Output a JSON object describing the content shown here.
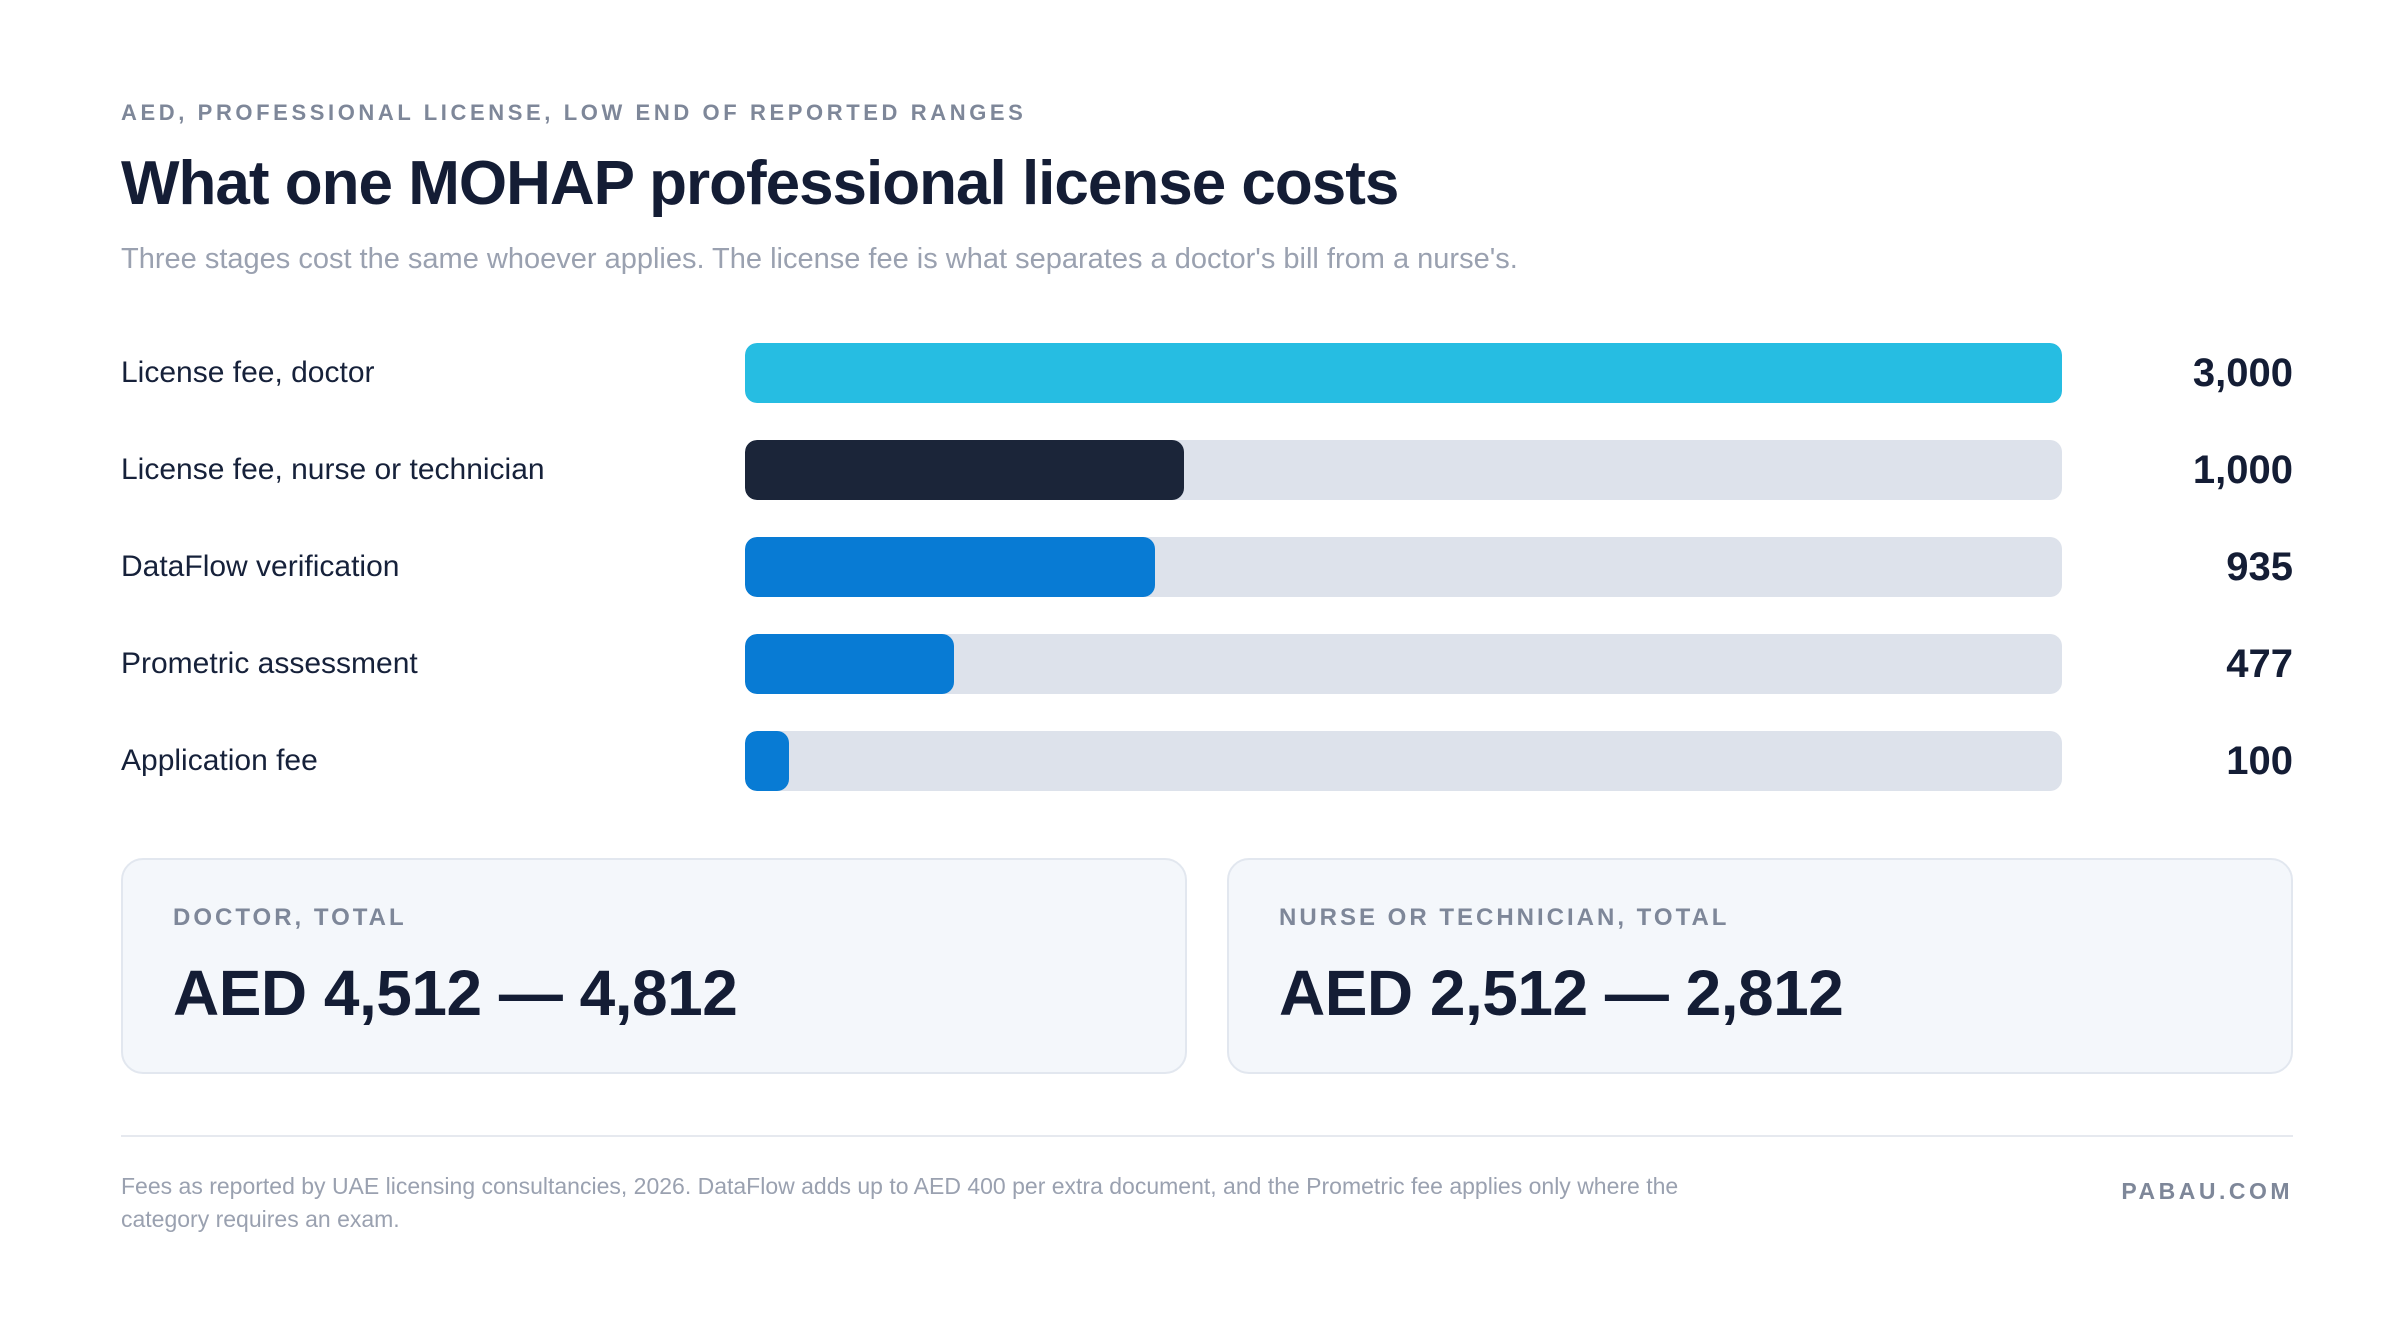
{
  "header": {
    "eyebrow": "AED, PROFESSIONAL LICENSE, LOW END OF REPORTED RANGES",
    "title": "What one MOHAP professional license costs",
    "subtitle": "Three stages cost the same whoever applies. The license fee is what separates a doctor's bill from a nurse's."
  },
  "chart_data": {
    "type": "bar",
    "orientation": "horizontal",
    "categories": [
      "License fee, doctor",
      "License fee, nurse or technician",
      "DataFlow verification",
      "Prometric assessment",
      "Application fee"
    ],
    "values": [
      3000,
      1000,
      935,
      477,
      100
    ],
    "value_labels": [
      "3,000",
      "1,000",
      "935",
      "477",
      "100"
    ],
    "bar_colors": [
      "#26bde2",
      "#1b2539",
      "#087bd4",
      "#087bd4",
      "#087bd4"
    ],
    "track_color": "#dde2eb",
    "xlim": [
      0,
      3000
    ],
    "grid": false,
    "legend": "none"
  },
  "summary": {
    "doctor": {
      "label": "DOCTOR, TOTAL",
      "value": "AED 4,512 — 4,812"
    },
    "nurse": {
      "label": "NURSE OR TECHNICIAN, TOTAL",
      "value": "AED 2,512 — 2,812"
    }
  },
  "footer": {
    "note": "Fees as reported by UAE licensing consultancies, 2026. DataFlow adds up to AED 400 per extra document, and the Prometric fee applies only where the category requires an exam.",
    "brand": "PABAU.COM"
  }
}
